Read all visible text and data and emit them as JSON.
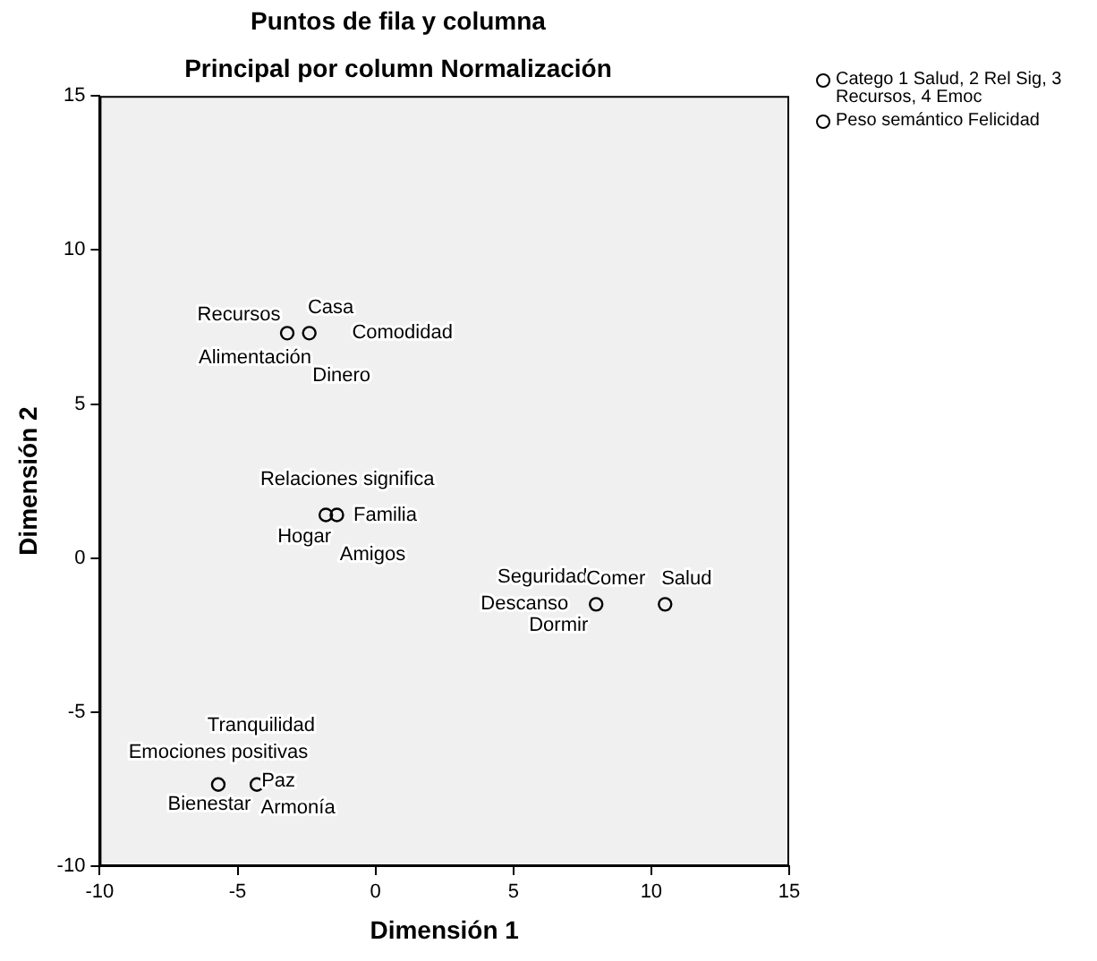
{
  "chart_data": {
    "type": "scatter",
    "title": "Puntos de fila y columna",
    "subtitle": "Principal por column Normalización",
    "xlabel": "Dimensión 1",
    "ylabel": "Dimensión 2",
    "xlim": [
      -10,
      15
    ],
    "xticks": [
      -10,
      -5,
      0,
      5,
      10,
      15
    ],
    "ylim": [
      -10,
      15
    ],
    "yticks": [
      -10,
      -5,
      0,
      5,
      10,
      15
    ],
    "grid": false,
    "legend": "top right",
    "marker": "circle",
    "series": [
      {
        "name": "Catego 1 Salud, 2 Rel Sig, 3 Recursos, 4 Emoc",
        "color": "#000000",
        "x": [
          10.5,
          -1.8,
          -3.2,
          -5.7
        ],
        "values": [
          -1.5,
          1.4,
          7.3,
          -7.35
        ]
      },
      {
        "name": "Peso semántico Felicidad",
        "color": "#000000",
        "x": [
          8.0,
          -1.4,
          -2.4,
          -4.3
        ],
        "values": [
          -1.5,
          1.4,
          7.3,
          -7.35
        ]
      }
    ],
    "annotations": [
      {
        "text": "Recursos",
        "x": -3.2,
        "y": 7.3
      },
      {
        "text": "Casa",
        "x": -2.4,
        "y": 7.3
      },
      {
        "text": "Comodidad",
        "x": -2.4,
        "y": 7.3
      },
      {
        "text": "Alimentación",
        "x": -3.2,
        "y": 7.3
      },
      {
        "text": "Dinero",
        "x": -2.4,
        "y": 7.3
      },
      {
        "text": "Relaciones significa",
        "x": -1.8,
        "y": 1.4
      },
      {
        "text": "Familia",
        "x": -1.4,
        "y": 1.4
      },
      {
        "text": "Hogar",
        "x": -1.8,
        "y": 1.4
      },
      {
        "text": "Amigos",
        "x": -1.4,
        "y": 1.4
      },
      {
        "text": "Seguridad",
        "x": 8.0,
        "y": -1.5
      },
      {
        "text": "Comer",
        "x": 8.0,
        "y": -1.5
      },
      {
        "text": "Salud",
        "x": 10.5,
        "y": -1.5
      },
      {
        "text": "Descanso",
        "x": 8.0,
        "y": -1.5
      },
      {
        "text": "Dormir",
        "x": 8.0,
        "y": -1.5
      },
      {
        "text": "Tranquilidad",
        "x": -5.7,
        "y": -7.35
      },
      {
        "text": "Emociones positivas",
        "x": -5.7,
        "y": -7.35
      },
      {
        "text": "Paz",
        "x": -4.3,
        "y": -7.35
      },
      {
        "text": "Bienestar",
        "x": -5.7,
        "y": -7.35
      },
      {
        "text": "Armonía",
        "x": -4.3,
        "y": -7.35
      }
    ]
  }
}
